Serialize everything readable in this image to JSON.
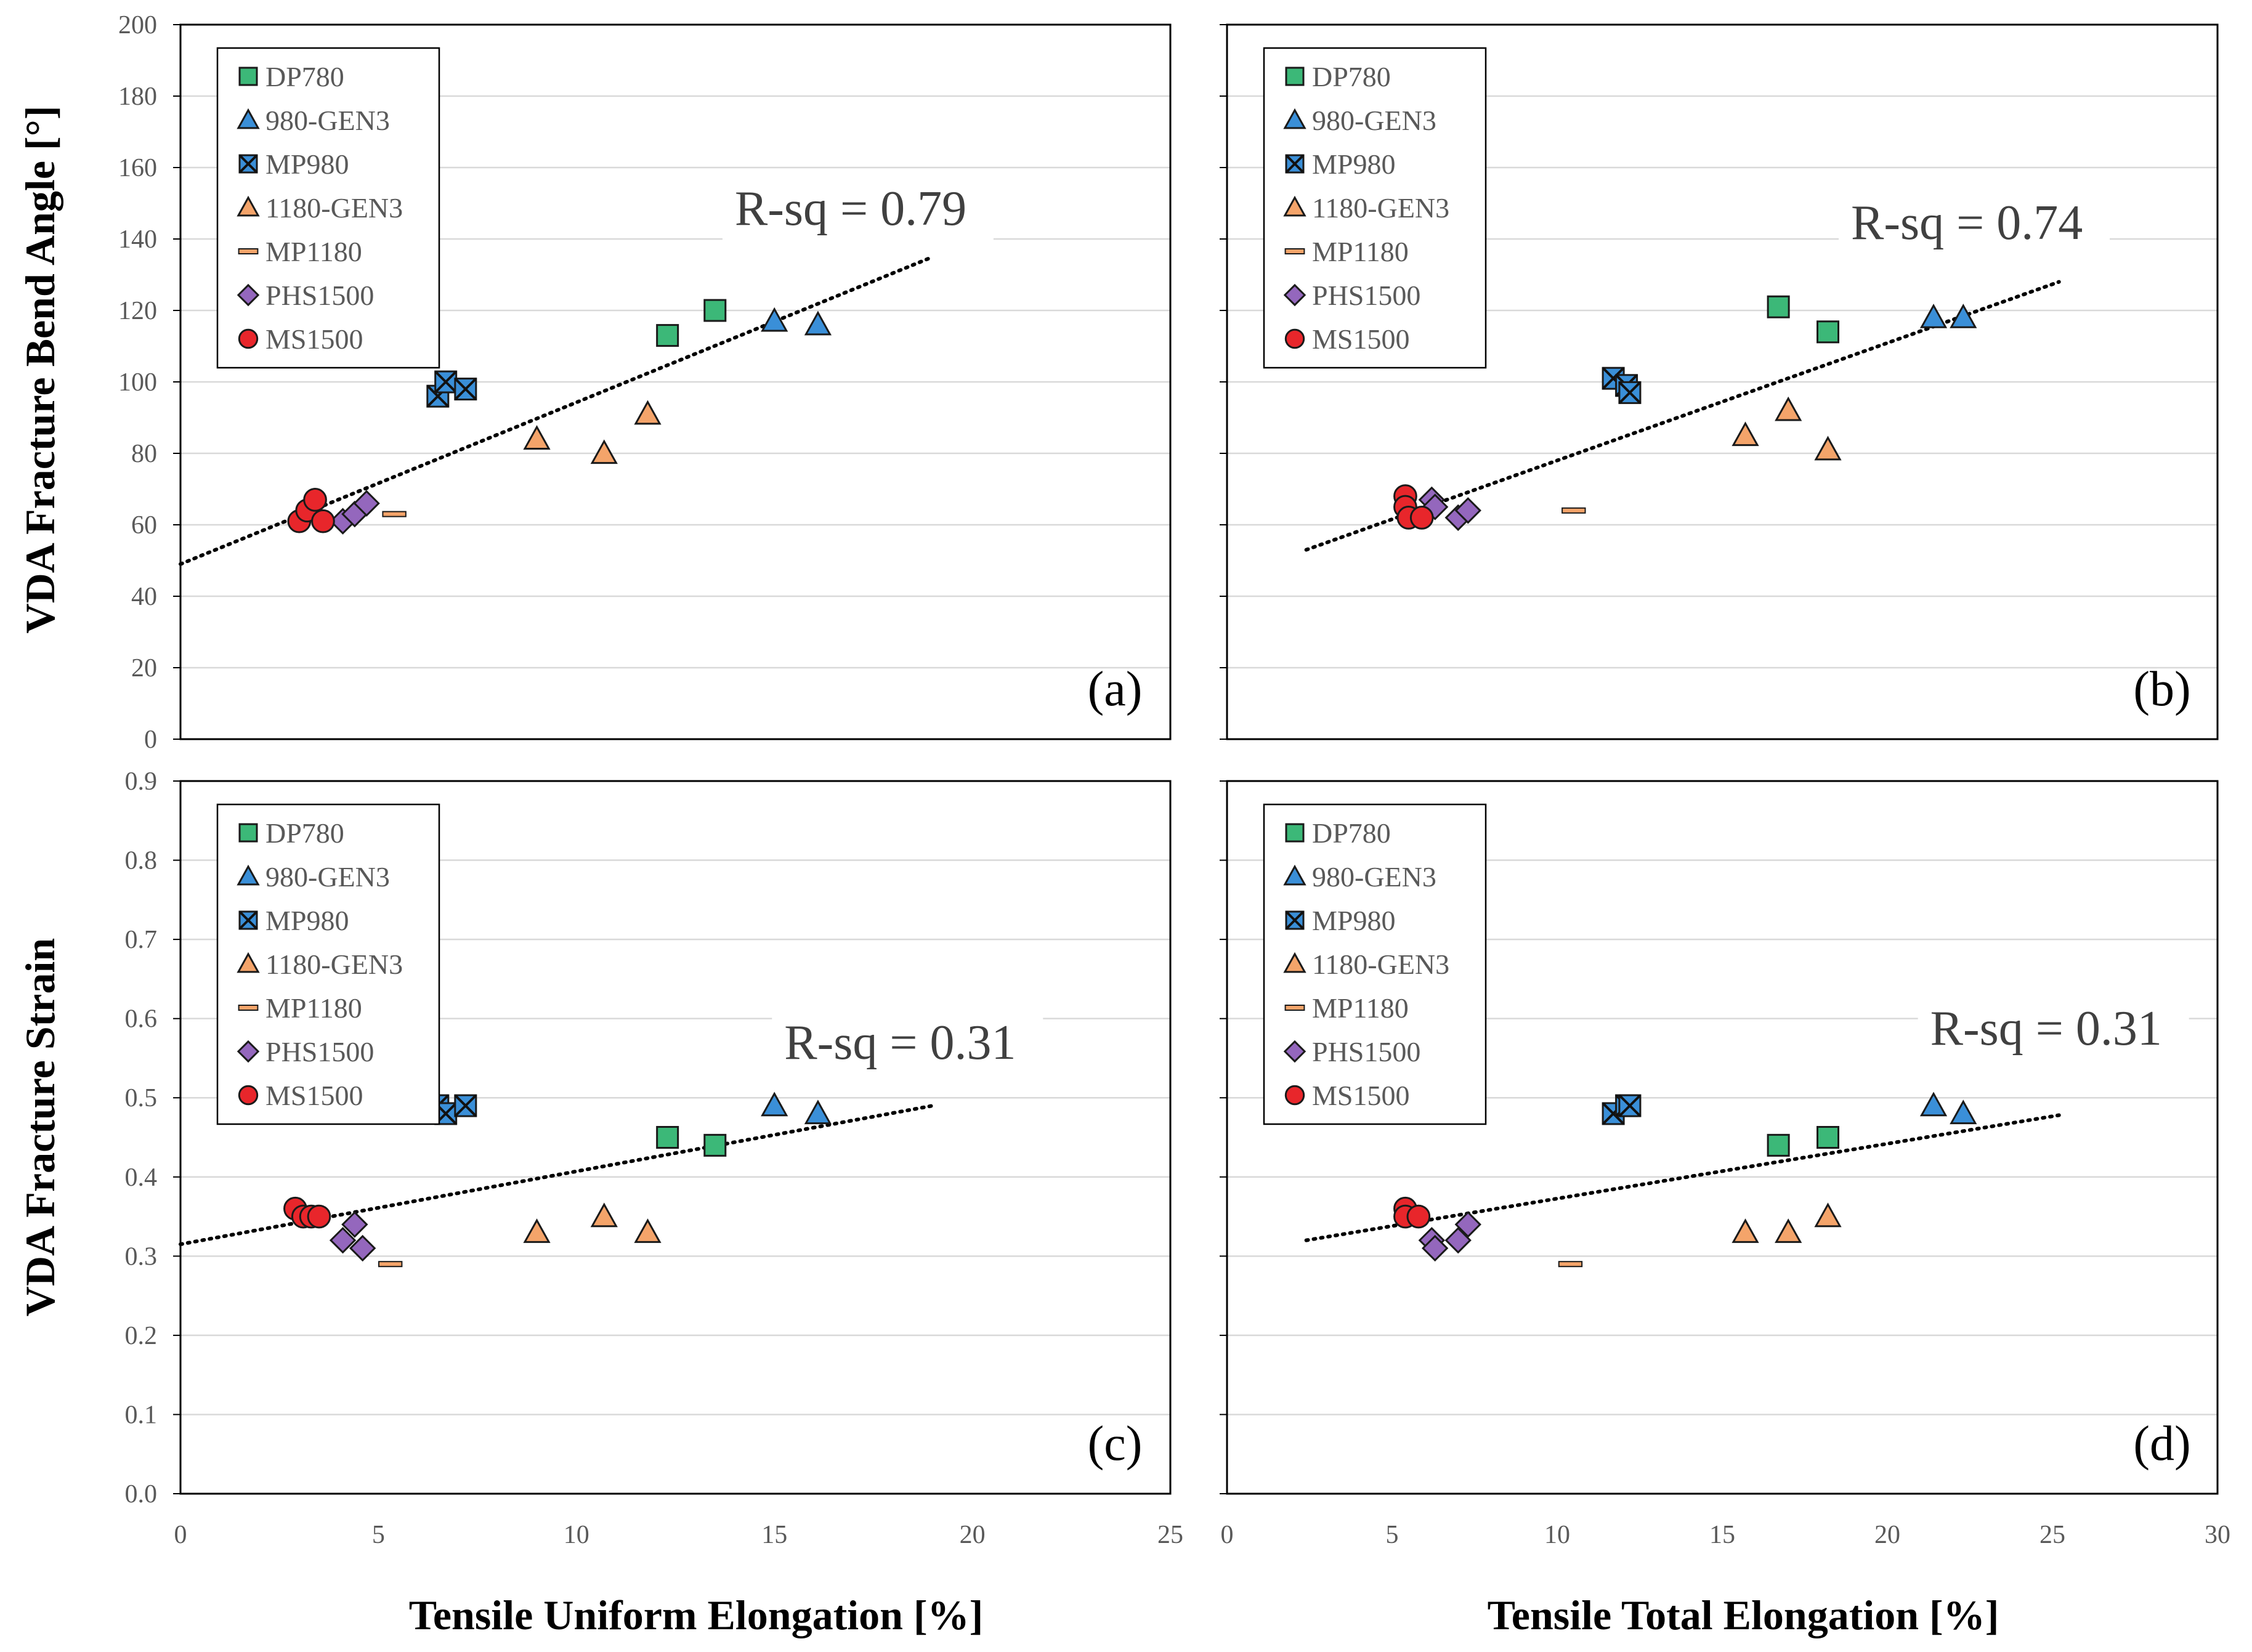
{
  "figure": {
    "y_axis_labels": [
      "VDA Fracture Bend Angle [°]",
      "VDA Fracture Strain"
    ],
    "x_axis_labels": [
      "Tensile Uniform Elongation [%]",
      "Tensile Total Elongation [%]"
    ]
  },
  "series_styles": {
    "DP780": {
      "marker": "square",
      "color": "#3cb878"
    },
    "980-GEN3": {
      "marker": "triangle",
      "color": "#3a8fd8"
    },
    "MP980": {
      "marker": "x-square",
      "color": "#3a8fd8"
    },
    "1180-GEN3": {
      "marker": "triangle",
      "color": "#f4a46a"
    },
    "MP1180": {
      "marker": "dash",
      "color": "#f4a46a"
    },
    "PHS1500": {
      "marker": "diamond",
      "color": "#9467bd"
    },
    "MS1500": {
      "marker": "circle",
      "color": "#e8262b"
    }
  },
  "chart_data": [
    {
      "type": "scatter",
      "panel": "(a)",
      "xlabel": "Tensile Uniform Elongation [%]",
      "ylabel": "VDA Fracture Bend Angle [°]",
      "xlim": [
        0,
        25
      ],
      "ylim": [
        0,
        200
      ],
      "xticks": [
        0,
        5,
        10,
        15,
        20,
        25
      ],
      "yticks": [
        0,
        20,
        40,
        60,
        80,
        100,
        120,
        140,
        160,
        180,
        200
      ],
      "grid": "horizontal",
      "legend_position": "top-left",
      "annotation": "R-sq = 0.79",
      "trendline": {
        "x": [
          0,
          19
        ],
        "y": [
          49,
          135
        ]
      },
      "series": [
        {
          "name": "DP780",
          "x": [
            12.3,
            13.5
          ],
          "y": [
            113,
            120
          ]
        },
        {
          "name": "980-GEN3",
          "x": [
            15.0,
            16.1
          ],
          "y": [
            117,
            116
          ]
        },
        {
          "name": "MP980",
          "x": [
            6.5,
            6.7,
            7.2
          ],
          "y": [
            96,
            100,
            98
          ]
        },
        {
          "name": "1180-GEN3",
          "x": [
            9.0,
            10.7,
            11.8
          ],
          "y": [
            84,
            80,
            91
          ]
        },
        {
          "name": "MP1180",
          "x": [
            5.4
          ],
          "y": [
            63
          ]
        },
        {
          "name": "PHS1500",
          "x": [
            4.1,
            4.4,
            4.7
          ],
          "y": [
            61,
            63,
            66
          ]
        },
        {
          "name": "MS1500",
          "x": [
            3.0,
            3.2,
            3.4,
            3.6
          ],
          "y": [
            61,
            64,
            67,
            61
          ]
        }
      ]
    },
    {
      "type": "scatter",
      "panel": "(b)",
      "xlabel": "Tensile Total Elongation [%]",
      "ylabel": "VDA Fracture Bend Angle [°]",
      "xlim": [
        0,
        30
      ],
      "ylim": [
        0,
        200
      ],
      "xticks": [
        0,
        5,
        10,
        15,
        20,
        25,
        30
      ],
      "yticks": [
        0,
        20,
        40,
        60,
        80,
        100,
        120,
        140,
        160,
        180,
        200
      ],
      "grid": "horizontal",
      "legend_position": "top-left",
      "annotation": "R-sq = 0.74",
      "trendline": {
        "x": [
          2.4,
          25.2
        ],
        "y": [
          53,
          128
        ]
      },
      "series": [
        {
          "name": "DP780",
          "x": [
            16.7,
            18.2
          ],
          "y": [
            121,
            114
          ]
        },
        {
          "name": "980-GEN3",
          "x": [
            21.4,
            22.3
          ],
          "y": [
            118,
            118
          ]
        },
        {
          "name": "MP980",
          "x": [
            11.7,
            12.1,
            12.2
          ],
          "y": [
            101,
            99,
            97
          ]
        },
        {
          "name": "1180-GEN3",
          "x": [
            15.7,
            17.0,
            18.2
          ],
          "y": [
            85,
            92,
            81
          ]
        },
        {
          "name": "MP1180",
          "x": [
            10.5
          ],
          "y": [
            64
          ]
        },
        {
          "name": "PHS1500",
          "x": [
            6.2,
            6.3,
            7.0,
            7.3
          ],
          "y": [
            67,
            65,
            62,
            64
          ]
        },
        {
          "name": "MS1500",
          "x": [
            5.4,
            5.4,
            5.5,
            5.9
          ],
          "y": [
            68,
            65,
            62,
            62
          ]
        }
      ]
    },
    {
      "type": "scatter",
      "panel": "(c)",
      "xlabel": "Tensile Uniform Elongation [%]",
      "ylabel": "VDA Fracture Strain",
      "xlim": [
        0,
        25
      ],
      "ylim": [
        0,
        0.9
      ],
      "xticks": [
        0,
        5,
        10,
        15,
        20,
        25
      ],
      "yticks": [
        0,
        0.1,
        0.2,
        0.3,
        0.4,
        0.5,
        0.6,
        0.7,
        0.8,
        0.9
      ],
      "grid": "horizontal",
      "legend_position": "top-left",
      "annotation": "R-sq = 0.31",
      "trendline": {
        "x": [
          0,
          19
        ],
        "y": [
          0.315,
          0.49
        ]
      },
      "series": [
        {
          "name": "DP780",
          "x": [
            12.3,
            13.5
          ],
          "y": [
            0.45,
            0.44
          ]
        },
        {
          "name": "980-GEN3",
          "x": [
            15.0,
            16.1
          ],
          "y": [
            0.49,
            0.48
          ]
        },
        {
          "name": "MP980",
          "x": [
            6.5,
            6.7,
            7.2
          ],
          "y": [
            0.49,
            0.48,
            0.49
          ]
        },
        {
          "name": "1180-GEN3",
          "x": [
            9.0,
            10.7,
            11.8
          ],
          "y": [
            0.33,
            0.35,
            0.33
          ]
        },
        {
          "name": "MP1180",
          "x": [
            5.3
          ],
          "y": [
            0.29
          ]
        },
        {
          "name": "PHS1500",
          "x": [
            4.1,
            4.4,
            4.6
          ],
          "y": [
            0.32,
            0.34,
            0.31
          ]
        },
        {
          "name": "MS1500",
          "x": [
            2.9,
            3.1,
            3.3,
            3.5
          ],
          "y": [
            0.36,
            0.35,
            0.35,
            0.35
          ]
        }
      ]
    },
    {
      "type": "scatter",
      "panel": "(d)",
      "xlabel": "Tensile Total Elongation [%]",
      "ylabel": "VDA Fracture Strain",
      "xlim": [
        0,
        30
      ],
      "ylim": [
        0,
        0.9
      ],
      "xticks": [
        0,
        5,
        10,
        15,
        20,
        25,
        30
      ],
      "yticks": [
        0,
        0.1,
        0.2,
        0.3,
        0.4,
        0.5,
        0.6,
        0.7,
        0.8,
        0.9
      ],
      "grid": "horizontal",
      "legend_position": "top-left",
      "annotation": "R-sq = 0.31",
      "trendline": {
        "x": [
          2.4,
          25.2
        ],
        "y": [
          0.32,
          0.478
        ]
      },
      "series": [
        {
          "name": "DP780",
          "x": [
            16.7,
            18.2
          ],
          "y": [
            0.44,
            0.45
          ]
        },
        {
          "name": "980-GEN3",
          "x": [
            21.4,
            22.3
          ],
          "y": [
            0.49,
            0.48
          ]
        },
        {
          "name": "MP980",
          "x": [
            11.7,
            12.1,
            12.2
          ],
          "y": [
            0.48,
            0.49,
            0.49
          ]
        },
        {
          "name": "1180-GEN3",
          "x": [
            15.7,
            17.0,
            18.2
          ],
          "y": [
            0.33,
            0.33,
            0.35
          ]
        },
        {
          "name": "MP1180",
          "x": [
            10.4
          ],
          "y": [
            0.29
          ]
        },
        {
          "name": "PHS1500",
          "x": [
            6.2,
            6.3,
            7.0,
            7.3
          ],
          "y": [
            0.32,
            0.31,
            0.32,
            0.34
          ]
        },
        {
          "name": "MS1500",
          "x": [
            5.4,
            5.4,
            5.8
          ],
          "y": [
            0.36,
            0.35,
            0.35
          ]
        }
      ]
    }
  ]
}
